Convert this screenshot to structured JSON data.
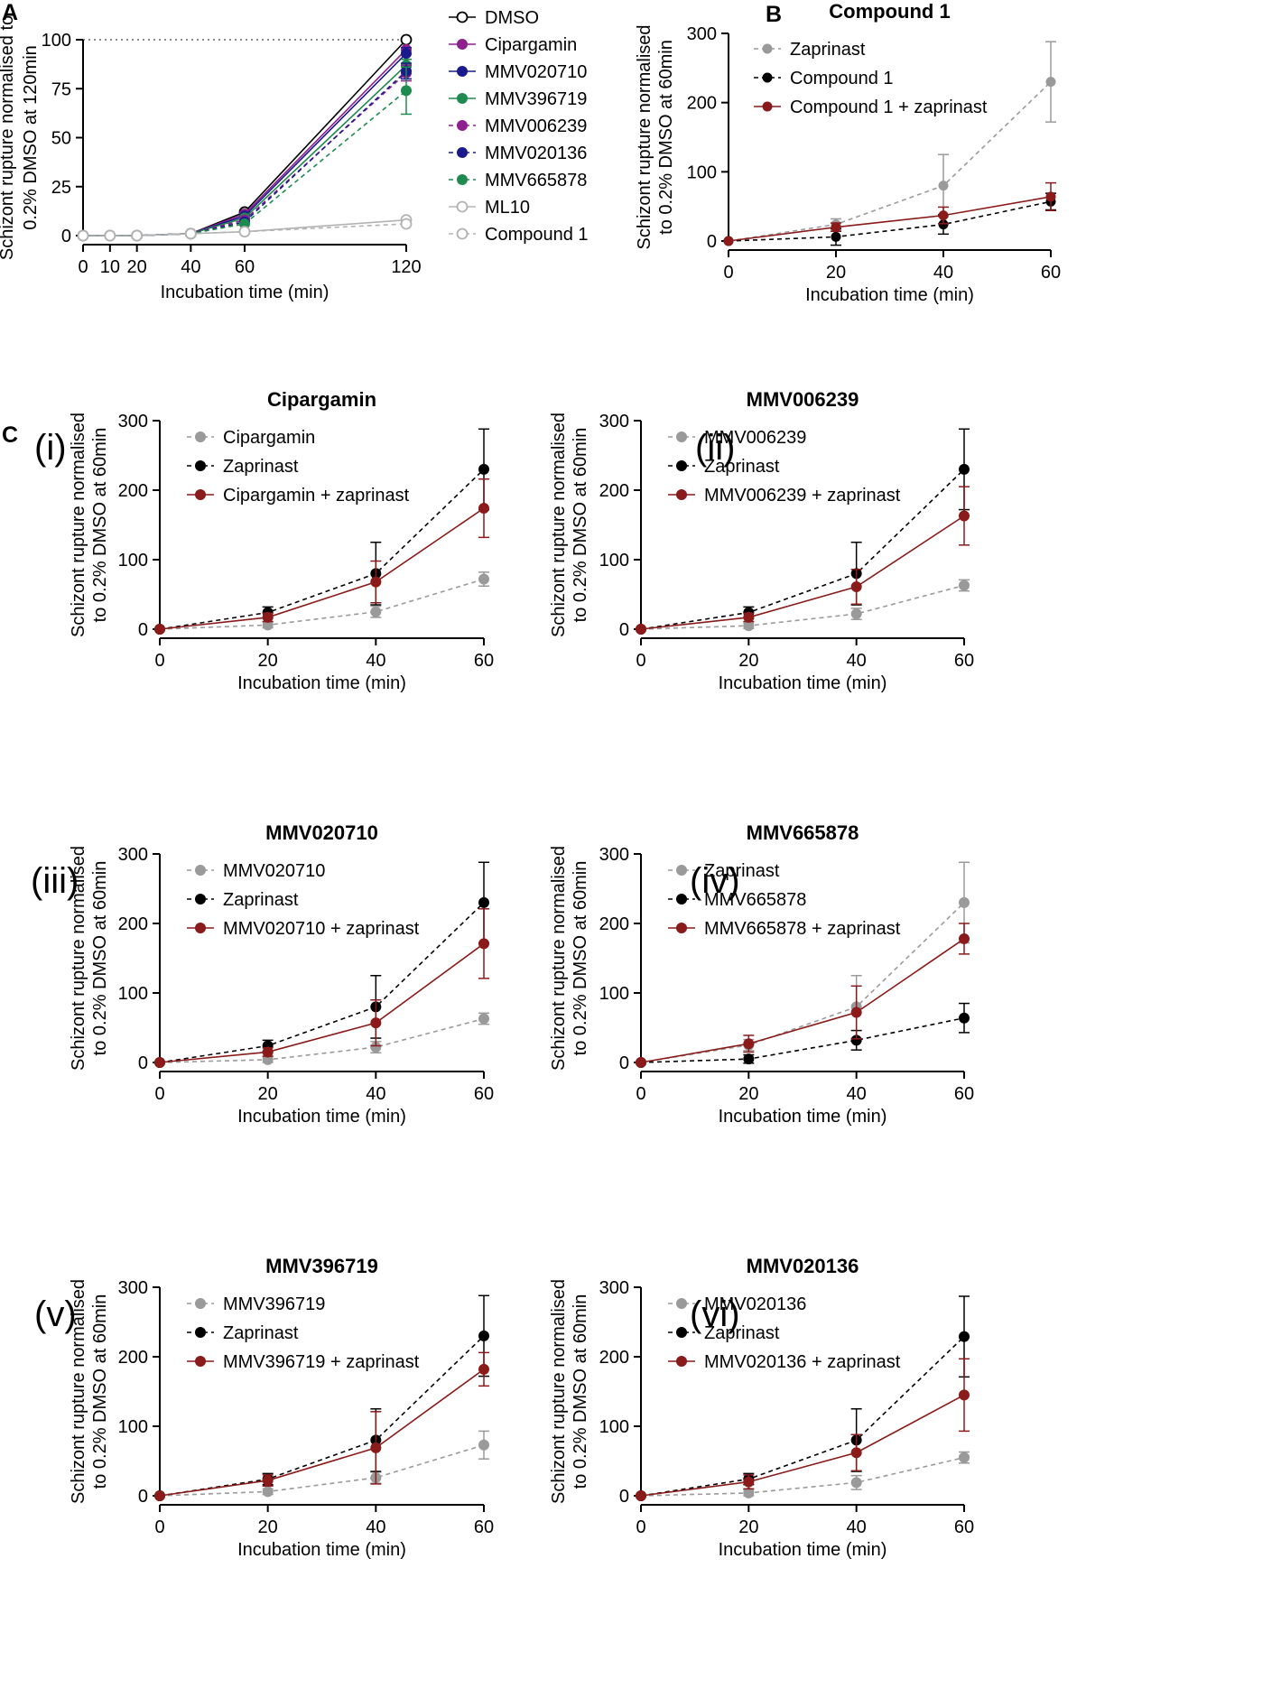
{
  "panels": {
    "a": "A",
    "b": "B",
    "c": "C"
  },
  "colors": {
    "black": "#000000",
    "grey": "#9a9a9a",
    "red": "#8b1a1a",
    "purple": "#8e1f8e",
    "navy": "#1a1a8c",
    "green": "#1f8a4f",
    "lightgrey": "#b3b3b3"
  },
  "chart_data": [
    {
      "id": "A",
      "type": "line",
      "title": "",
      "xlabel": "Incubation time (min)",
      "ylabel": [
        "Schizont rupture normalised to",
        "0.2% DMSO at 120min"
      ],
      "xlim": [
        0,
        120
      ],
      "ylim": [
        0,
        100
      ],
      "xticks": [
        0,
        10,
        20,
        40,
        60,
        120
      ],
      "yticks": [
        0,
        25,
        50,
        75,
        100
      ],
      "reference_line": 100,
      "series": [
        {
          "name": "DMSO",
          "color": "#000000",
          "dash": false,
          "open": true,
          "x": [
            0,
            10,
            20,
            40,
            60,
            120
          ],
          "y": [
            0,
            0,
            0,
            1,
            12,
            100
          ],
          "err": [
            0,
            0,
            0,
            0,
            0,
            0
          ]
        },
        {
          "name": "Cipargamin",
          "color": "#8e1f8e",
          "dash": false,
          "open": false,
          "x": [
            0,
            10,
            20,
            40,
            60,
            120
          ],
          "y": [
            0,
            0,
            0,
            1,
            11,
            95
          ],
          "err": [
            0,
            0,
            0,
            0,
            0,
            0
          ]
        },
        {
          "name": "MMV020710",
          "color": "#1a1a8c",
          "dash": false,
          "open": false,
          "x": [
            0,
            10,
            20,
            40,
            60,
            120
          ],
          "y": [
            0,
            0,
            0,
            1,
            10,
            93
          ],
          "err": [
            0,
            0,
            0,
            0,
            0,
            3
          ]
        },
        {
          "name": "MMV396719",
          "color": "#1f8a4f",
          "dash": false,
          "open": false,
          "x": [
            0,
            10,
            20,
            40,
            60,
            120
          ],
          "y": [
            0,
            0,
            0,
            1,
            9,
            87
          ],
          "err": [
            0,
            0,
            0,
            0,
            0,
            3
          ]
        },
        {
          "name": "MMV006239",
          "color": "#8e1f8e",
          "dash": true,
          "open": false,
          "x": [
            0,
            10,
            20,
            40,
            60,
            120
          ],
          "y": [
            0,
            0,
            0,
            1,
            8,
            83
          ],
          "err": [
            0,
            0,
            0,
            0,
            0,
            4
          ]
        },
        {
          "name": "MMV020136",
          "color": "#1a1a8c",
          "dash": true,
          "open": false,
          "x": [
            0,
            10,
            20,
            40,
            60,
            120
          ],
          "y": [
            0,
            0,
            0,
            1,
            7,
            84
          ],
          "err": [
            0,
            0,
            0,
            0,
            0,
            4
          ]
        },
        {
          "name": "MMV665878",
          "color": "#1f8a4f",
          "dash": true,
          "open": false,
          "x": [
            0,
            10,
            20,
            40,
            60,
            120
          ],
          "y": [
            0,
            0,
            0,
            1,
            6,
            74
          ],
          "err": [
            0,
            0,
            0,
            0,
            0,
            12
          ]
        },
        {
          "name": "ML10",
          "color": "#b3b3b3",
          "dash": false,
          "open": true,
          "x": [
            0,
            10,
            20,
            40,
            60,
            120
          ],
          "y": [
            0,
            0,
            0,
            1,
            2,
            8
          ],
          "err": [
            0,
            0,
            0,
            0,
            0,
            0
          ]
        },
        {
          "name": "Compound 1",
          "color": "#b3b3b3",
          "dash": true,
          "open": true,
          "x": [
            0,
            10,
            20,
            40,
            60,
            120
          ],
          "y": [
            0,
            0,
            0,
            1,
            2,
            6
          ],
          "err": [
            0,
            0,
            0,
            0,
            0,
            0
          ]
        }
      ]
    },
    {
      "id": "B",
      "type": "line",
      "title": "Compound 1",
      "xlabel": "Incubation time (min)",
      "ylabel": [
        "Schizont rupture normalised",
        "to 0.2% DMSO at 60min"
      ],
      "xlim": [
        0,
        60
      ],
      "ylim": [
        0,
        300
      ],
      "xticks": [
        0,
        20,
        40,
        60
      ],
      "yticks": [
        0,
        100,
        200,
        300
      ],
      "series": [
        {
          "name": "Zaprinast",
          "color": "#9a9a9a",
          "dash": true,
          "x": [
            0,
            20,
            40,
            60
          ],
          "y": [
            0,
            24,
            80,
            230
          ],
          "err": [
            0,
            8,
            45,
            58
          ]
        },
        {
          "name": "Compound 1",
          "color": "#000000",
          "dash": true,
          "x": [
            0,
            20,
            40,
            60
          ],
          "y": [
            0,
            6,
            24,
            57
          ],
          "err": [
            0,
            12,
            14,
            12
          ]
        },
        {
          "name": "Compound 1 + zaprinast",
          "color": "#8b1a1a",
          "dash": false,
          "x": [
            0,
            20,
            40,
            60
          ],
          "y": [
            0,
            20,
            37,
            64
          ],
          "err": [
            0,
            6,
            12,
            20
          ]
        }
      ]
    },
    {
      "id": "C-i",
      "sublabel": "(i)",
      "type": "line",
      "title": "Cipargamin",
      "xlabel": "Incubation time (min)",
      "ylabel": [
        "Schizont rupture normalised",
        "to 0.2% DMSO at 60min"
      ],
      "xlim": [
        0,
        60
      ],
      "ylim": [
        0,
        300
      ],
      "xticks": [
        0,
        20,
        40,
        60
      ],
      "yticks": [
        0,
        100,
        200,
        300
      ],
      "series": [
        {
          "name": "Cipargamin",
          "color": "#9a9a9a",
          "dash": true,
          "x": [
            0,
            20,
            40,
            60
          ],
          "y": [
            0,
            6,
            25,
            72
          ],
          "err": [
            0,
            4,
            8,
            10
          ]
        },
        {
          "name": "Zaprinast",
          "color": "#000000",
          "dash": true,
          "x": [
            0,
            20,
            40,
            60
          ],
          "y": [
            0,
            24,
            80,
            230
          ],
          "err": [
            0,
            8,
            45,
            58
          ]
        },
        {
          "name": "Cipargamin + zaprinast",
          "color": "#8b1a1a",
          "dash": false,
          "x": [
            0,
            20,
            40,
            60
          ],
          "y": [
            0,
            17,
            68,
            174
          ],
          "err": [
            0,
            6,
            30,
            42
          ]
        }
      ]
    },
    {
      "id": "C-ii",
      "sublabel": "(ii)",
      "type": "line",
      "title": "MMV006239",
      "xlabel": "Incubation time (min)",
      "ylabel": [
        "Schizont rupture normalised",
        "to 0.2% DMSO at 60min"
      ],
      "xlim": [
        0,
        60
      ],
      "ylim": [
        0,
        300
      ],
      "xticks": [
        0,
        20,
        40,
        60
      ],
      "yticks": [
        0,
        100,
        200,
        300
      ],
      "series": [
        {
          "name": "MMV006239",
          "color": "#9a9a9a",
          "dash": true,
          "x": [
            0,
            20,
            40,
            60
          ],
          "y": [
            0,
            5,
            22,
            63
          ],
          "err": [
            0,
            4,
            8,
            8
          ]
        },
        {
          "name": "Zaprinast",
          "color": "#000000",
          "dash": true,
          "x": [
            0,
            20,
            40,
            60
          ],
          "y": [
            0,
            24,
            80,
            230
          ],
          "err": [
            0,
            8,
            45,
            58
          ]
        },
        {
          "name": "MMV006239 + zaprinast",
          "color": "#8b1a1a",
          "dash": false,
          "x": [
            0,
            20,
            40,
            60
          ],
          "y": [
            0,
            17,
            61,
            163
          ],
          "err": [
            0,
            6,
            25,
            42
          ]
        }
      ]
    },
    {
      "id": "C-iii",
      "sublabel": "(iii)",
      "type": "line",
      "title": "MMV020710",
      "xlabel": "Incubation time (min)",
      "ylabel": [
        "Schizont rupture normalised",
        "to 0.2% DMSO at 60min"
      ],
      "xlim": [
        0,
        60
      ],
      "ylim": [
        0,
        300
      ],
      "xticks": [
        0,
        20,
        40,
        60
      ],
      "yticks": [
        0,
        100,
        200,
        300
      ],
      "series": [
        {
          "name": "MMV020710",
          "color": "#9a9a9a",
          "dash": true,
          "x": [
            0,
            20,
            40,
            60
          ],
          "y": [
            0,
            4,
            22,
            63
          ],
          "err": [
            0,
            4,
            8,
            8
          ]
        },
        {
          "name": "Zaprinast",
          "color": "#000000",
          "dash": true,
          "x": [
            0,
            20,
            40,
            60
          ],
          "y": [
            0,
            24,
            80,
            230
          ],
          "err": [
            0,
            8,
            45,
            58
          ]
        },
        {
          "name": "MMV020710 + zaprinast",
          "color": "#8b1a1a",
          "dash": false,
          "x": [
            0,
            20,
            40,
            60
          ],
          "y": [
            0,
            15,
            57,
            171
          ],
          "err": [
            0,
            6,
            33,
            50
          ]
        }
      ]
    },
    {
      "id": "C-iv",
      "sublabel": "(iv)",
      "type": "line",
      "title": "MMV665878",
      "xlabel": "Incubation time (min)",
      "ylabel": [
        "Schizont rupture normalised",
        "to 0.2% DMSO at 60min"
      ],
      "xlim": [
        0,
        60
      ],
      "ylim": [
        0,
        300
      ],
      "xticks": [
        0,
        20,
        40,
        60
      ],
      "yticks": [
        0,
        100,
        200,
        300
      ],
      "series": [
        {
          "name": "Zaprinast",
          "color": "#9a9a9a",
          "dash": true,
          "x": [
            0,
            20,
            40,
            60
          ],
          "y": [
            0,
            25,
            80,
            230
          ],
          "err": [
            0,
            8,
            45,
            58
          ]
        },
        {
          "name": "MMV665878",
          "color": "#000000",
          "dash": true,
          "x": [
            0,
            20,
            40,
            60
          ],
          "y": [
            0,
            5,
            32,
            64
          ],
          "err": [
            0,
            6,
            14,
            21
          ]
        },
        {
          "name": "MMV665878 + zaprinast",
          "color": "#8b1a1a",
          "dash": false,
          "x": [
            0,
            20,
            40,
            60
          ],
          "y": [
            0,
            27,
            72,
            178
          ],
          "err": [
            0,
            12,
            38,
            22
          ]
        }
      ]
    },
    {
      "id": "C-v",
      "sublabel": "(v)",
      "type": "line",
      "title": "MMV396719",
      "xlabel": "Incubation time (min)",
      "ylabel": [
        "Schizont rupture normalised",
        "to 0.2% DMSO at 60min"
      ],
      "xlim": [
        0,
        60
      ],
      "ylim": [
        0,
        300
      ],
      "xticks": [
        0,
        20,
        40,
        60
      ],
      "yticks": [
        0,
        100,
        200,
        300
      ],
      "series": [
        {
          "name": "MMV396719",
          "color": "#9a9a9a",
          "dash": true,
          "x": [
            0,
            20,
            40,
            60
          ],
          "y": [
            0,
            6,
            26,
            73
          ],
          "err": [
            0,
            4,
            8,
            20
          ]
        },
        {
          "name": "Zaprinast",
          "color": "#000000",
          "dash": true,
          "x": [
            0,
            20,
            40,
            60
          ],
          "y": [
            0,
            24,
            80,
            230
          ],
          "err": [
            0,
            8,
            45,
            58
          ]
        },
        {
          "name": "MMV396719 + zaprinast",
          "color": "#8b1a1a",
          "dash": false,
          "x": [
            0,
            20,
            40,
            60
          ],
          "y": [
            0,
            22,
            69,
            182
          ],
          "err": [
            0,
            8,
            52,
            24
          ]
        }
      ]
    },
    {
      "id": "C-vi",
      "sublabel": "(vi)",
      "type": "line",
      "title": "MMV020136",
      "xlabel": "Incubation time (min)",
      "ylabel": [
        "Schizont rupture normalised",
        "to 0.2% DMSO at 60min"
      ],
      "xlim": [
        0,
        60
      ],
      "ylim": [
        0,
        300
      ],
      "xticks": [
        0,
        20,
        40,
        60
      ],
      "yticks": [
        0,
        100,
        200,
        300
      ],
      "series": [
        {
          "name": "MMV020136",
          "color": "#9a9a9a",
          "dash": true,
          "x": [
            0,
            20,
            40,
            60
          ],
          "y": [
            0,
            4,
            19,
            55
          ],
          "err": [
            0,
            4,
            10,
            8
          ]
        },
        {
          "name": "Zaprinast",
          "color": "#000000",
          "dash": true,
          "x": [
            0,
            20,
            40,
            60
          ],
          "y": [
            0,
            24,
            80,
            229
          ],
          "err": [
            0,
            8,
            45,
            58
          ]
        },
        {
          "name": "MMV020136 + zaprinast",
          "color": "#8b1a1a",
          "dash": false,
          "x": [
            0,
            20,
            40,
            60
          ],
          "y": [
            0,
            20,
            62,
            145
          ],
          "err": [
            0,
            10,
            26,
            52
          ]
        }
      ]
    }
  ]
}
